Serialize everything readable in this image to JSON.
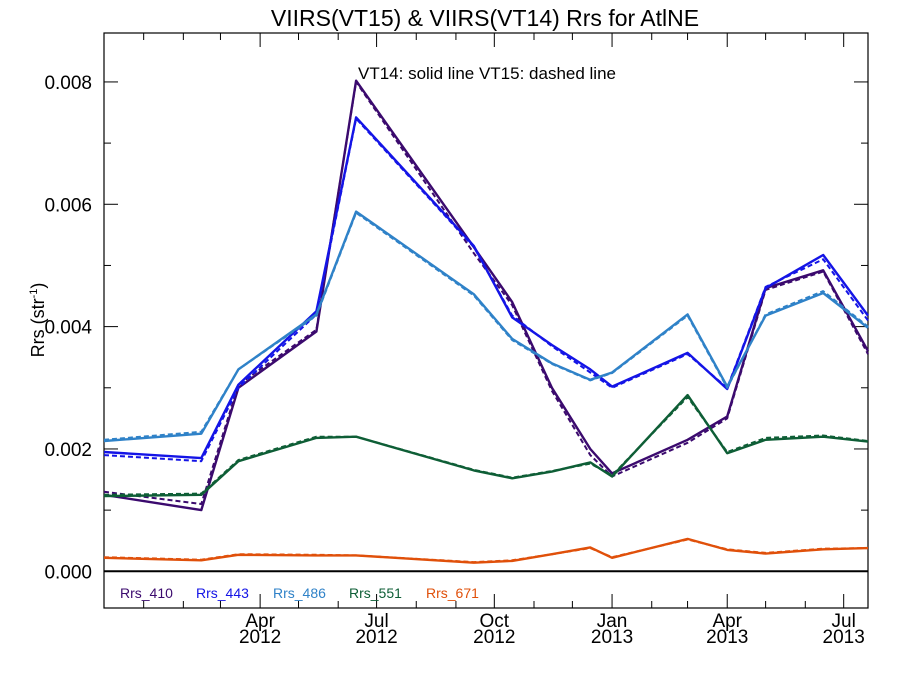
{
  "chart_data": {
    "type": "line",
    "title": "VIIRS(VT15) & VIIRS(VT14)  Rrs for AtlNE",
    "annotation": "VT14: solid line   VT15: dashed line",
    "ylabel": "Rrs (str",
    "ylabel_sup": "-1",
    "ylabel_close": ")",
    "xlim": [
      "2011-12-01",
      "2013-07-20"
    ],
    "ylim": [
      -0.0006,
      0.0088
    ],
    "yticks": [
      {
        "value": 0.0,
        "label": "0.000"
      },
      {
        "value": 0.002,
        "label": "0.002"
      },
      {
        "value": 0.004,
        "label": "0.004"
      },
      {
        "value": 0.006,
        "label": "0.006"
      },
      {
        "value": 0.008,
        "label": "0.008"
      }
    ],
    "xticks": [
      {
        "date": "2012-04-01",
        "month": "Apr",
        "year": "2012"
      },
      {
        "date": "2012-07-01",
        "month": "Jul",
        "year": "2012"
      },
      {
        "date": "2012-10-01",
        "month": "Oct",
        "year": "2012"
      },
      {
        "date": "2013-01-01",
        "month": "Jan",
        "year": "2013"
      },
      {
        "date": "2013-04-01",
        "month": "Apr",
        "year": "2013"
      },
      {
        "date": "2013-07-01",
        "month": "Jul",
        "year": "2013"
      }
    ],
    "x": [
      "2011-12-01",
      "2012-02-15",
      "2012-03-15",
      "2012-05-15",
      "2012-06-15",
      "2012-09-15",
      "2012-10-15",
      "2012-11-15",
      "2012-12-15",
      "2013-01-01",
      "2013-03-01",
      "2013-04-01",
      "2013-05-01",
      "2013-06-15",
      "2013-07-20"
    ],
    "zero_line": true,
    "legend_position": "bottom-left",
    "series": [
      {
        "name": "Rrs_410",
        "color": "#3b0a6e",
        "vt14": [
          0.00125,
          0.001,
          0.003,
          0.00392,
          0.00802,
          0.0053,
          0.0044,
          0.003,
          0.002,
          0.0016,
          0.00215,
          0.00253,
          0.00463,
          0.00492,
          0.0036
        ],
        "vt15": [
          0.0013,
          0.0011,
          0.00305,
          0.00395,
          0.008,
          0.0052,
          0.00435,
          0.00295,
          0.0019,
          0.00155,
          0.0021,
          0.0025,
          0.0046,
          0.0049,
          0.00355
        ]
      },
      {
        "name": "Rrs_443",
        "color": "#1414e6",
        "vt14": [
          0.00195,
          0.00185,
          0.00305,
          0.00425,
          0.00742,
          0.00532,
          0.00415,
          0.0037,
          0.0033,
          0.00302,
          0.00357,
          0.00298,
          0.00463,
          0.00517,
          0.00418
        ],
        "vt15": [
          0.0019,
          0.0018,
          0.003,
          0.0042,
          0.0074,
          0.0053,
          0.00418,
          0.00368,
          0.00325,
          0.003,
          0.00355,
          0.003,
          0.00465,
          0.0051,
          0.0041
        ]
      },
      {
        "name": "Rrs_486",
        "color": "#2f82c8",
        "vt14": [
          0.00213,
          0.00225,
          0.0033,
          0.0042,
          0.00588,
          0.00453,
          0.0038,
          0.0034,
          0.00313,
          0.00325,
          0.0042,
          0.00302,
          0.00418,
          0.00455,
          0.00398
        ],
        "vt15": [
          0.00215,
          0.00228,
          0.0033,
          0.00418,
          0.00586,
          0.00451,
          0.00378,
          0.00339,
          0.00312,
          0.00324,
          0.00418,
          0.003,
          0.0042,
          0.00458,
          0.004
        ]
      },
      {
        "name": "Rrs_551",
        "color": "#0e5e36",
        "vt14": [
          0.00123,
          0.00125,
          0.0018,
          0.00218,
          0.0022,
          0.00165,
          0.00152,
          0.00163,
          0.00178,
          0.00155,
          0.00288,
          0.00193,
          0.00215,
          0.0022,
          0.00212
        ],
        "vt15": [
          0.00125,
          0.00127,
          0.00182,
          0.0022,
          0.0022,
          0.00166,
          0.00153,
          0.00164,
          0.00176,
          0.00157,
          0.00285,
          0.00195,
          0.00218,
          0.00222,
          0.00213
        ]
      },
      {
        "name": "Rrs_671",
        "color": "#e0500a",
        "vt14": [
          0.00022,
          0.00018,
          0.00027,
          0.00026,
          0.00026,
          0.00014,
          0.00017,
          0.00028,
          0.00039,
          0.00022,
          0.00053,
          0.00035,
          0.00029,
          0.00036,
          0.00038
        ],
        "vt15": [
          0.00023,
          0.00019,
          0.00028,
          0.00027,
          0.00026,
          0.00015,
          0.00018,
          0.00028,
          0.00038,
          0.00023,
          0.00052,
          0.00036,
          0.0003,
          0.00037,
          0.00038
        ]
      }
    ]
  }
}
